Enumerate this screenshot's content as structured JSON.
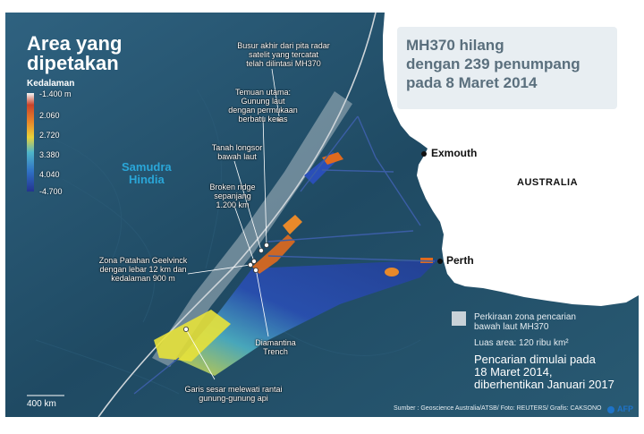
{
  "title_left": "Area yang\ndipetakan",
  "headline": "MH370 hilang\ndengan 239 penumpang\npada 8 Maret 2014",
  "legend": {
    "title": "Kedalaman",
    "values": [
      "-1.400 m",
      "2.060",
      "2.720",
      "3.380",
      "4.040",
      "-4.700"
    ]
  },
  "ocean_label": "Samudra\nHindia",
  "country_label": "AUSTRALIA",
  "cities": [
    {
      "name": "Exmouth"
    },
    {
      "name": "Perth"
    }
  ],
  "annotations": {
    "radar_arc": "Busur akhir dari pita radar\nsatelit yang tercatat\ntelah dilintasi MH370",
    "main_finding": "Temuan utama:\nGunung laut\ndengan permukaan\nberbatu keras",
    "landslide": "Tanah longsor\nbawah laut",
    "broken_ridge": "Broken ridge\nsepanjang\n1.200 km",
    "geelvinck": "Zona Patahan Geelvinck\ndengan lebar 12 km dan\nkedalaman 900 m",
    "diamantina": "Diamantina\nTrench",
    "fault_line": "Garis sesar melewati rantai\ngunung-gunung api"
  },
  "search_zone": {
    "label": "Perkiraan zona pencarian\nbawah laut MH370",
    "area": "Luas area: 120 ribu km²"
  },
  "search_dates": "Pencarian dimulai pada\n18 Maret 2014,\ndiberhentikan Januari 2017",
  "scale": "400 km",
  "source": "Sumber : Geoscience Australia/ATSB/ Foto: REUTERS/ Grafis: CAKSONO",
  "logo": "AFP",
  "colors": {
    "ocean_deep": "#1f4a63",
    "ocean_light": "#4f7f95",
    "land": "#ffffff",
    "headline_box": "#e6edf1",
    "headline_text": "#5a6f7d",
    "ocean_label": "#2aa6d8",
    "scan_blue": "#2a4fb8",
    "scan_yellow": "#e8e23a",
    "scan_orange": "#e06a1e",
    "search_zone": "#c9d2d8"
  }
}
